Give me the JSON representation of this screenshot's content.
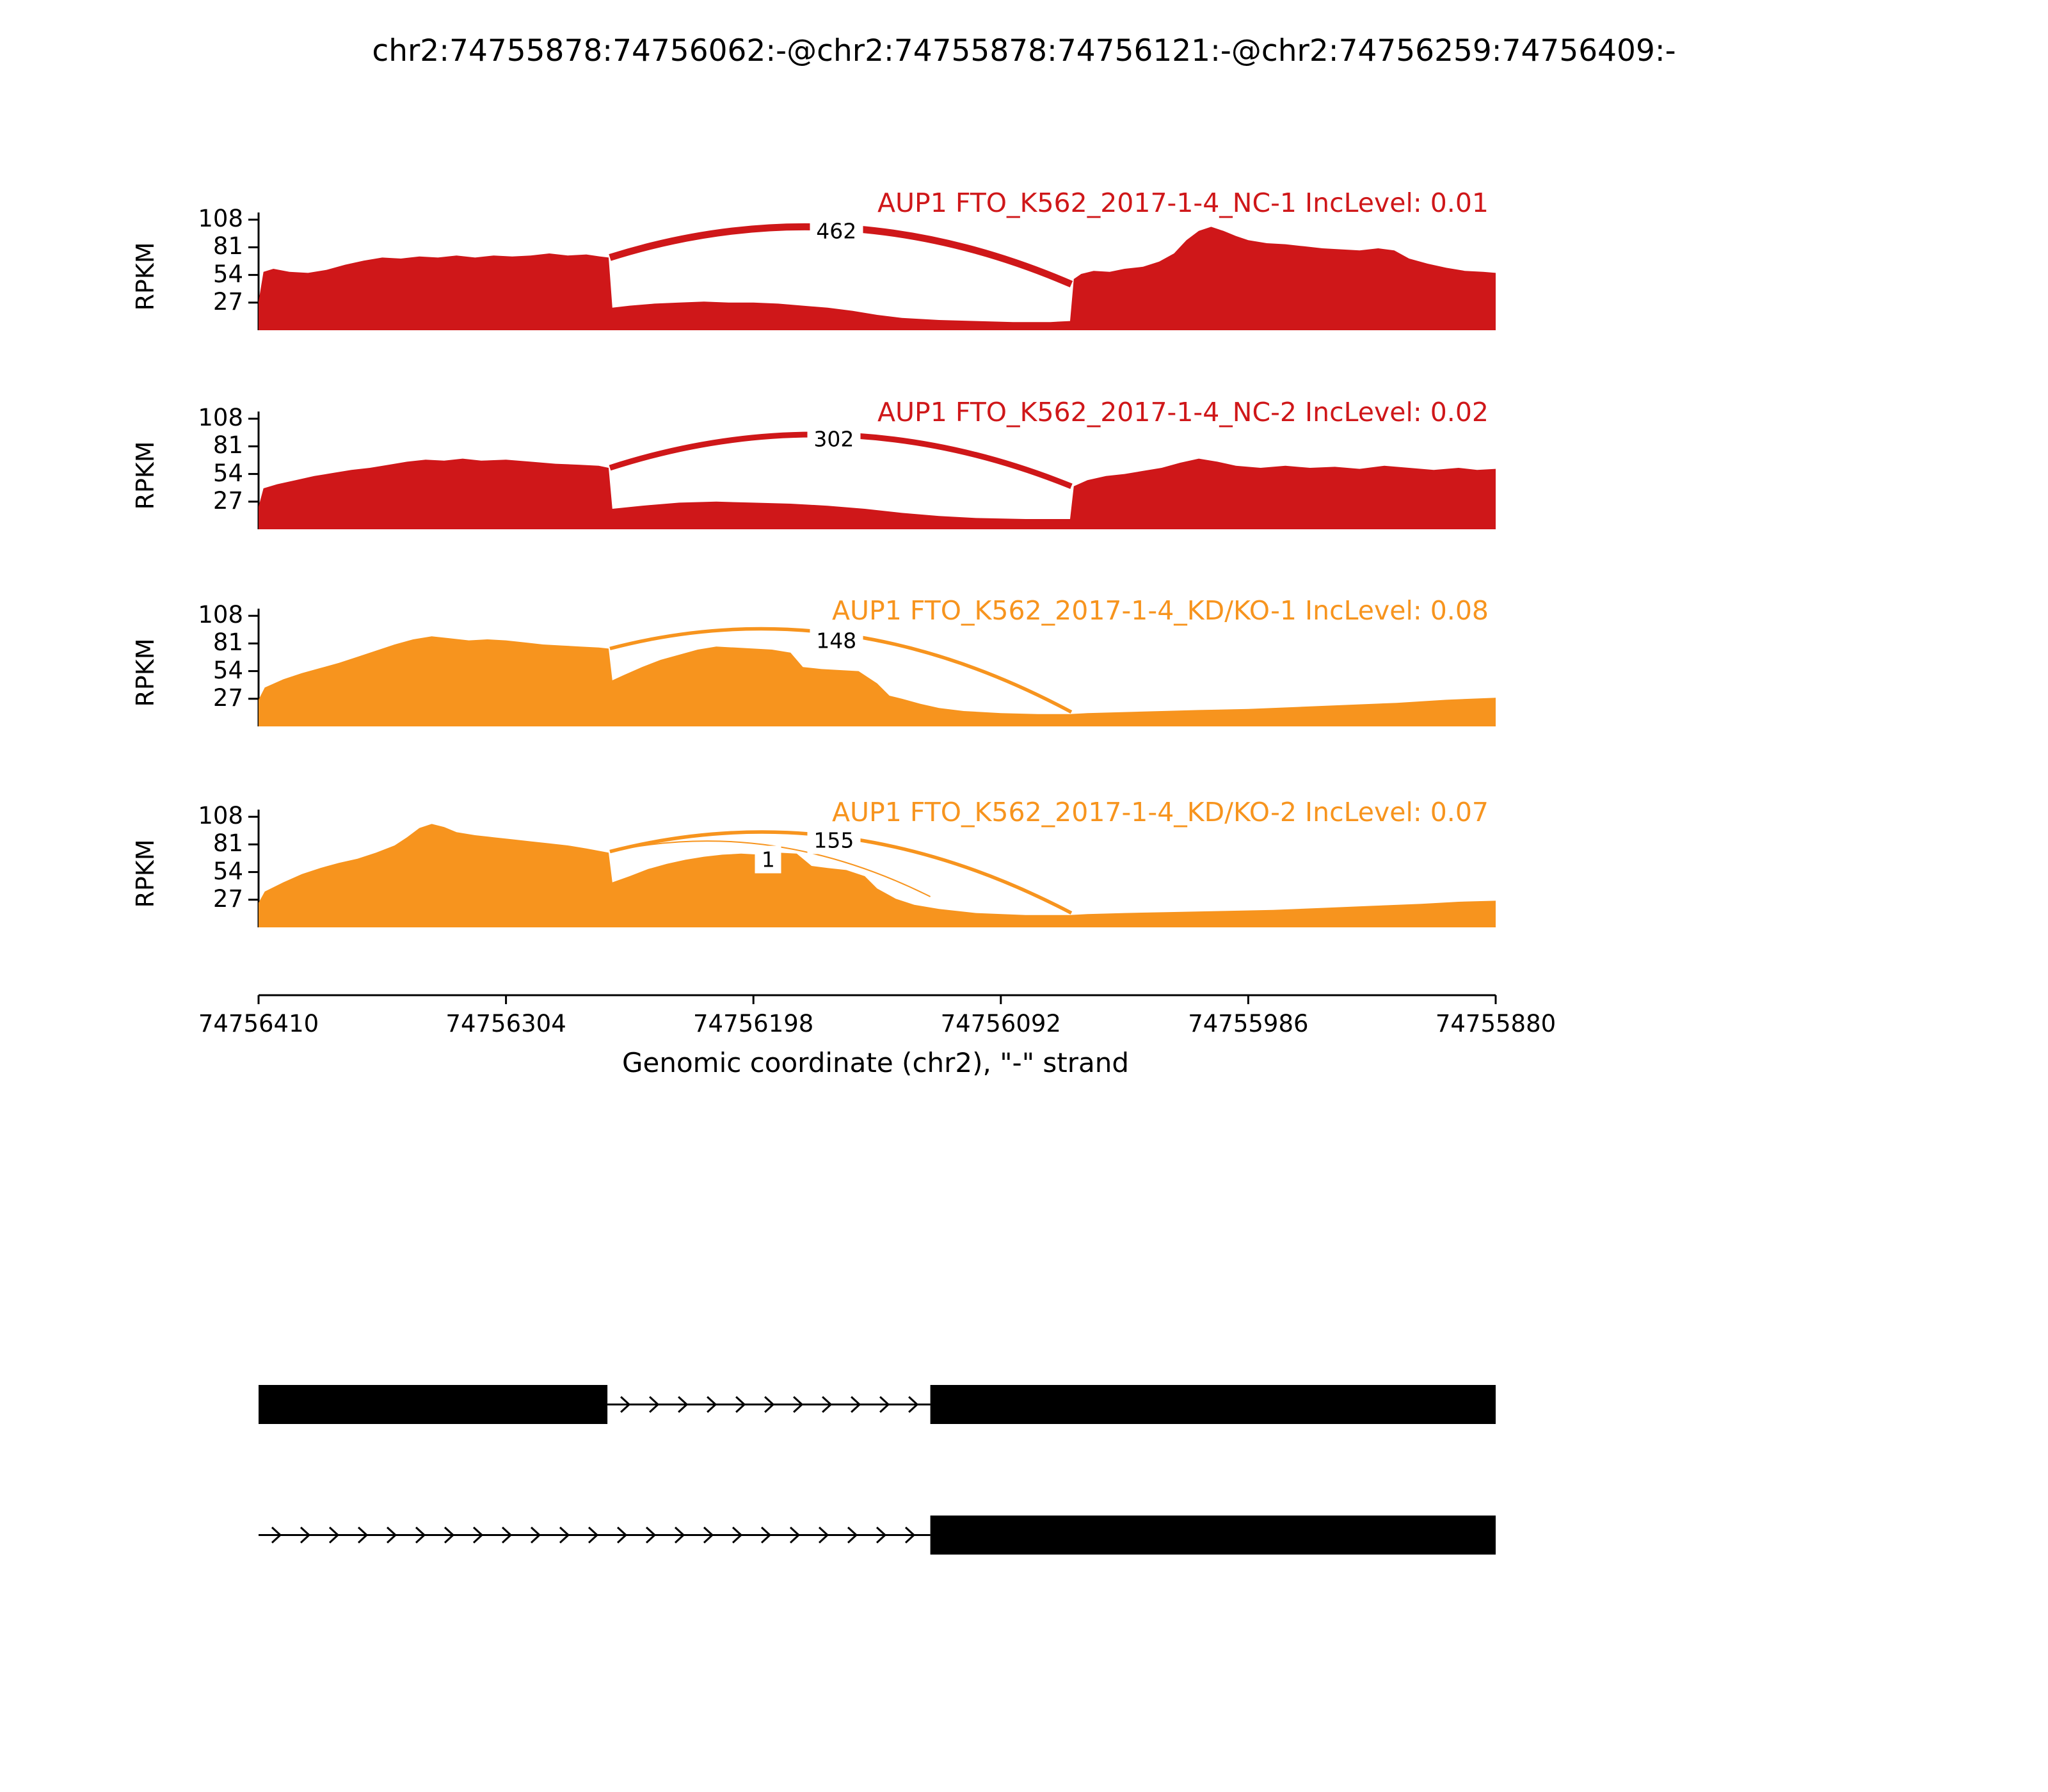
{
  "title": "chr2:74755878:74756062:-@chr2:74755878:74756121:-@chr2:74756259:74756409:-",
  "chart_data": {
    "type": "area",
    "subtype": "sashimi-plot",
    "ylabel": "RPKM",
    "xlabel": "Genomic coordinate (chr2), \"-\" strand",
    "yticks": [
      27,
      54,
      81,
      108
    ],
    "ylim": [
      0,
      115
    ],
    "xticks": [
      74756410,
      74756304,
      74756198,
      74756092,
      74755986,
      74755880
    ],
    "x_range": [
      74756410,
      74755880
    ],
    "strand": "-",
    "gene": "AUP1",
    "tracks": [
      {
        "title": "AUP1 FTO_K562_2017-1-4_NC-1 IncLevel: 0.01",
        "sample": "FTO_K562_2017-1-4_NC-1",
        "inc_level": 0.01,
        "color": "#CF1719",
        "junctions": [
          {
            "count": 462,
            "x1": 0.284,
            "y1": 71,
            "x2": 0.657,
            "y2": 45,
            "apex": 100,
            "width": 11,
            "label_x": 0.467,
            "label_y": 97
          }
        ],
        "coverage": [
          [
            0,
            28
          ],
          [
            0.004,
            57
          ],
          [
            0.012,
            60
          ],
          [
            0.025,
            57
          ],
          [
            0.04,
            56
          ],
          [
            0.055,
            59
          ],
          [
            0.07,
            64
          ],
          [
            0.085,
            68
          ],
          [
            0.1,
            71
          ],
          [
            0.115,
            70
          ],
          [
            0.13,
            72
          ],
          [
            0.145,
            71
          ],
          [
            0.16,
            73
          ],
          [
            0.175,
            71
          ],
          [
            0.19,
            73
          ],
          [
            0.205,
            72
          ],
          [
            0.22,
            73
          ],
          [
            0.235,
            75
          ],
          [
            0.25,
            73
          ],
          [
            0.265,
            74
          ],
          [
            0.276,
            72
          ],
          [
            0.283,
            71
          ],
          [
            0.286,
            22
          ],
          [
            0.3,
            24
          ],
          [
            0.32,
            26
          ],
          [
            0.34,
            27
          ],
          [
            0.36,
            28
          ],
          [
            0.38,
            27
          ],
          [
            0.4,
            27
          ],
          [
            0.42,
            26
          ],
          [
            0.44,
            24
          ],
          [
            0.46,
            22
          ],
          [
            0.48,
            19
          ],
          [
            0.5,
            15
          ],
          [
            0.52,
            12
          ],
          [
            0.55,
            10
          ],
          [
            0.58,
            9
          ],
          [
            0.61,
            8
          ],
          [
            0.64,
            8
          ],
          [
            0.656,
            9
          ],
          [
            0.659,
            50
          ],
          [
            0.665,
            55
          ],
          [
            0.675,
            58
          ],
          [
            0.688,
            57
          ],
          [
            0.7,
            60
          ],
          [
            0.715,
            62
          ],
          [
            0.728,
            67
          ],
          [
            0.74,
            75
          ],
          [
            0.75,
            88
          ],
          [
            0.76,
            97
          ],
          [
            0.77,
            101
          ],
          [
            0.78,
            97
          ],
          [
            0.79,
            92
          ],
          [
            0.8,
            88
          ],
          [
            0.815,
            85
          ],
          [
            0.83,
            84
          ],
          [
            0.845,
            82
          ],
          [
            0.86,
            80
          ],
          [
            0.875,
            79
          ],
          [
            0.89,
            78
          ],
          [
            0.905,
            80
          ],
          [
            0.918,
            78
          ],
          [
            0.93,
            70
          ],
          [
            0.945,
            65
          ],
          [
            0.96,
            61
          ],
          [
            0.975,
            58
          ],
          [
            0.99,
            57
          ],
          [
            1,
            56
          ]
        ]
      },
      {
        "title": "AUP1 FTO_K562_2017-1-4_NC-2 IncLevel: 0.02",
        "sample": "FTO_K562_2017-1-4_NC-2",
        "inc_level": 0.02,
        "color": "#CF1719",
        "junctions": [
          {
            "count": 302,
            "x1": 0.284,
            "y1": 60,
            "x2": 0.657,
            "y2": 42,
            "apex": 92,
            "width": 9,
            "label_x": 0.465,
            "label_y": 88
          }
        ],
        "coverage": [
          [
            0,
            22
          ],
          [
            0.004,
            40
          ],
          [
            0.015,
            44
          ],
          [
            0.03,
            48
          ],
          [
            0.045,
            52
          ],
          [
            0.06,
            55
          ],
          [
            0.075,
            58
          ],
          [
            0.09,
            60
          ],
          [
            0.105,
            63
          ],
          [
            0.12,
            66
          ],
          [
            0.135,
            68
          ],
          [
            0.15,
            67
          ],
          [
            0.165,
            69
          ],
          [
            0.18,
            67
          ],
          [
            0.2,
            68
          ],
          [
            0.22,
            66
          ],
          [
            0.24,
            64
          ],
          [
            0.26,
            63
          ],
          [
            0.275,
            62
          ],
          [
            0.283,
            60
          ],
          [
            0.286,
            20
          ],
          [
            0.31,
            23
          ],
          [
            0.34,
            26
          ],
          [
            0.37,
            27
          ],
          [
            0.4,
            26
          ],
          [
            0.43,
            25
          ],
          [
            0.46,
            23
          ],
          [
            0.49,
            20
          ],
          [
            0.52,
            16
          ],
          [
            0.55,
            13
          ],
          [
            0.58,
            11
          ],
          [
            0.62,
            10
          ],
          [
            0.656,
            10
          ],
          [
            0.659,
            42
          ],
          [
            0.67,
            48
          ],
          [
            0.685,
            52
          ],
          [
            0.7,
            54
          ],
          [
            0.715,
            57
          ],
          [
            0.73,
            60
          ],
          [
            0.745,
            65
          ],
          [
            0.76,
            69
          ],
          [
            0.775,
            66
          ],
          [
            0.79,
            62
          ],
          [
            0.81,
            60
          ],
          [
            0.83,
            62
          ],
          [
            0.85,
            60
          ],
          [
            0.87,
            61
          ],
          [
            0.89,
            59
          ],
          [
            0.91,
            62
          ],
          [
            0.93,
            60
          ],
          [
            0.95,
            58
          ],
          [
            0.97,
            60
          ],
          [
            0.985,
            58
          ],
          [
            1,
            59
          ]
        ]
      },
      {
        "title": "AUP1 FTO_K562_2017-1-4_KD/KO-1 IncLevel: 0.08",
        "sample": "FTO_K562_2017-1-4_KD/KO-1",
        "inc_level": 0.08,
        "color": "#F7941E",
        "junctions": [
          {
            "count": 148,
            "x1": 0.284,
            "y1": 76,
            "x2": 0.657,
            "y2": 14,
            "apex": 90,
            "width": 5.5,
            "label_x": 0.467,
            "label_y": 84
          }
        ],
        "coverage": [
          [
            0,
            26
          ],
          [
            0.005,
            38
          ],
          [
            0.02,
            46
          ],
          [
            0.035,
            52
          ],
          [
            0.05,
            57
          ],
          [
            0.065,
            62
          ],
          [
            0.08,
            68
          ],
          [
            0.095,
            74
          ],
          [
            0.11,
            80
          ],
          [
            0.125,
            85
          ],
          [
            0.14,
            88
          ],
          [
            0.155,
            86
          ],
          [
            0.17,
            84
          ],
          [
            0.185,
            85
          ],
          [
            0.2,
            84
          ],
          [
            0.215,
            82
          ],
          [
            0.23,
            80
          ],
          [
            0.245,
            79
          ],
          [
            0.26,
            78
          ],
          [
            0.275,
            77
          ],
          [
            0.283,
            76
          ],
          [
            0.286,
            45
          ],
          [
            0.295,
            50
          ],
          [
            0.31,
            58
          ],
          [
            0.325,
            65
          ],
          [
            0.34,
            70
          ],
          [
            0.355,
            75
          ],
          [
            0.37,
            78
          ],
          [
            0.385,
            77
          ],
          [
            0.4,
            76
          ],
          [
            0.415,
            75
          ],
          [
            0.43,
            72
          ],
          [
            0.44,
            58
          ],
          [
            0.455,
            56
          ],
          [
            0.47,
            55
          ],
          [
            0.485,
            54
          ],
          [
            0.5,
            42
          ],
          [
            0.51,
            30
          ],
          [
            0.52,
            27
          ],
          [
            0.535,
            22
          ],
          [
            0.55,
            18
          ],
          [
            0.57,
            15
          ],
          [
            0.6,
            13
          ],
          [
            0.63,
            12
          ],
          [
            0.656,
            12
          ],
          [
            0.67,
            13
          ],
          [
            0.7,
            14
          ],
          [
            0.73,
            15
          ],
          [
            0.76,
            16
          ],
          [
            0.8,
            17
          ],
          [
            0.84,
            19
          ],
          [
            0.88,
            21
          ],
          [
            0.92,
            23
          ],
          [
            0.96,
            26
          ],
          [
            1,
            28
          ]
        ]
      },
      {
        "title": "AUP1 FTO_K562_2017-1-4_KD/KO-2 IncLevel: 0.07",
        "sample": "FTO_K562_2017-1-4_KD/KO-2",
        "inc_level": 0.07,
        "color": "#F7941E",
        "junctions": [
          {
            "count": 155,
            "x1": 0.284,
            "y1": 74,
            "x2": 0.657,
            "y2": 14,
            "apex": 88,
            "width": 5.5,
            "label_x": 0.465,
            "label_y": 85
          },
          {
            "count": 1,
            "x1": 0.284,
            "y1": 74,
            "x2": 0.543,
            "y2": 30,
            "apex": 80,
            "width": 2,
            "label_x": 0.412,
            "label_y": 66
          }
        ],
        "coverage": [
          [
            0,
            24
          ],
          [
            0.005,
            35
          ],
          [
            0.02,
            44
          ],
          [
            0.035,
            52
          ],
          [
            0.05,
            58
          ],
          [
            0.065,
            63
          ],
          [
            0.08,
            67
          ],
          [
            0.095,
            73
          ],
          [
            0.11,
            80
          ],
          [
            0.12,
            88
          ],
          [
            0.13,
            97
          ],
          [
            0.14,
            101
          ],
          [
            0.15,
            98
          ],
          [
            0.16,
            93
          ],
          [
            0.175,
            90
          ],
          [
            0.19,
            88
          ],
          [
            0.205,
            86
          ],
          [
            0.22,
            84
          ],
          [
            0.235,
            82
          ],
          [
            0.25,
            80
          ],
          [
            0.265,
            77
          ],
          [
            0.283,
            73
          ],
          [
            0.286,
            44
          ],
          [
            0.3,
            50
          ],
          [
            0.315,
            57
          ],
          [
            0.33,
            62
          ],
          [
            0.345,
            66
          ],
          [
            0.36,
            69
          ],
          [
            0.375,
            71
          ],
          [
            0.39,
            72
          ],
          [
            0.405,
            71
          ],
          [
            0.42,
            73
          ],
          [
            0.435,
            72
          ],
          [
            0.447,
            60
          ],
          [
            0.46,
            58
          ],
          [
            0.475,
            56
          ],
          [
            0.49,
            50
          ],
          [
            0.5,
            38
          ],
          [
            0.515,
            28
          ],
          [
            0.53,
            22
          ],
          [
            0.55,
            18
          ],
          [
            0.58,
            14
          ],
          [
            0.62,
            12
          ],
          [
            0.656,
            12
          ],
          [
            0.67,
            13
          ],
          [
            0.7,
            14
          ],
          [
            0.74,
            15
          ],
          [
            0.78,
            16
          ],
          [
            0.82,
            17
          ],
          [
            0.86,
            19
          ],
          [
            0.9,
            21
          ],
          [
            0.94,
            23
          ],
          [
            0.97,
            25
          ],
          [
            1,
            26
          ]
        ]
      }
    ],
    "gene_structure": {
      "color": "#000000",
      "isoforms": [
        {
          "exons": [
            [
              0.0,
              0.282
            ],
            [
              0.543,
              1.0
            ]
          ],
          "introns": [
            [
              0.282,
              0.543
            ]
          ]
        },
        {
          "exons": [
            [
              0.543,
              1.0
            ]
          ],
          "introns": [
            [
              0.0,
              0.543
            ]
          ]
        }
      ]
    }
  }
}
